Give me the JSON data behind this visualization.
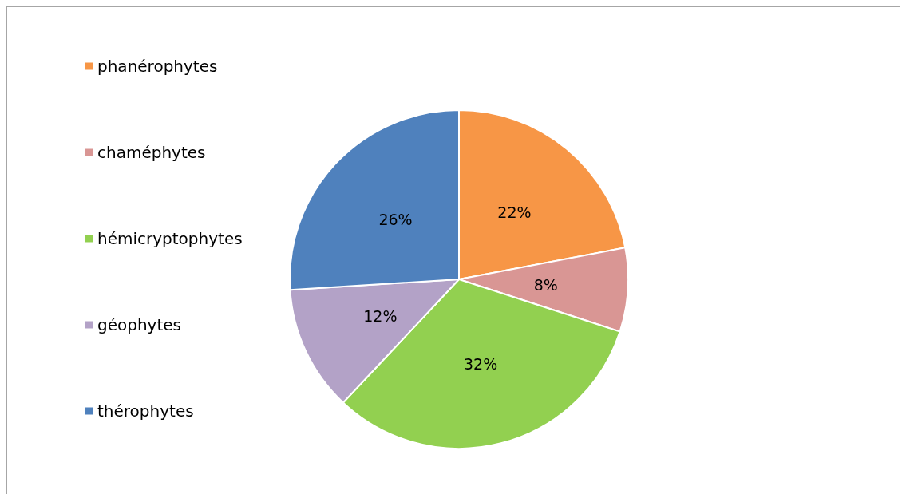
{
  "chart_data": {
    "type": "pie",
    "categories": [
      "phanérophytes",
      "chaméphytes",
      "hémicryptophytes",
      "géophytes",
      "thérophytes"
    ],
    "values": [
      22,
      8,
      32,
      12,
      26
    ],
    "value_labels": [
      "22%",
      "8%",
      "32%",
      "12%",
      "26%"
    ],
    "colors": [
      "#f79646",
      "#d99694",
      "#92d050",
      "#b3a2c7",
      "#4f81bd"
    ],
    "legend": "left"
  }
}
